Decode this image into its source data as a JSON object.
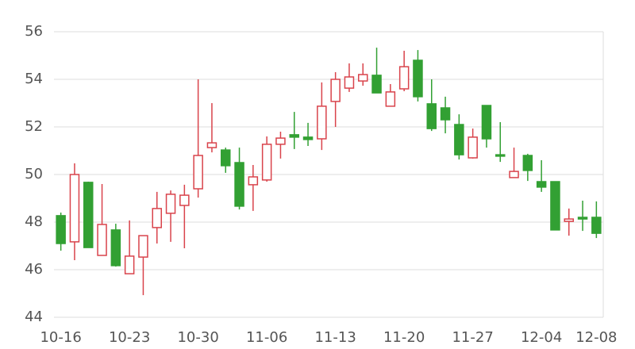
{
  "chart_data": {
    "type": "candlestick",
    "categories": [
      "10-16",
      null,
      null,
      null,
      null,
      "10-23",
      null,
      null,
      null,
      null,
      "10-30",
      null,
      null,
      null,
      null,
      "11-06",
      null,
      null,
      null,
      null,
      "11-13",
      null,
      null,
      null,
      null,
      "11-20",
      null,
      null,
      null,
      null,
      "11-27",
      null,
      null,
      null,
      null,
      "12-04",
      null,
      null,
      null,
      "12-08"
    ],
    "open": [
      48.27,
      47.17,
      49.67,
      46.6,
      47.67,
      45.83,
      46.53,
      47.77,
      48.37,
      48.7,
      49.4,
      51.13,
      51.03,
      50.5,
      49.57,
      49.77,
      51.27,
      51.67,
      51.57,
      51.5,
      53.07,
      53.63,
      53.93,
      54.17,
      52.87,
      53.6,
      54.8,
      52.97,
      52.8,
      52.1,
      50.7,
      52.9,
      50.83,
      49.87,
      50.8,
      49.7,
      49.7,
      48.03,
      48.2,
      48.2
    ],
    "close": [
      47.1,
      50.0,
      46.93,
      47.9,
      46.17,
      46.57,
      47.43,
      48.57,
      49.17,
      49.13,
      50.8,
      51.33,
      50.37,
      48.67,
      49.9,
      51.27,
      51.53,
      51.57,
      51.47,
      52.87,
      54.0,
      54.1,
      54.2,
      53.43,
      53.47,
      54.53,
      53.27,
      51.93,
      52.3,
      50.83,
      51.57,
      51.5,
      50.77,
      50.13,
      50.17,
      49.47,
      47.67,
      48.13,
      48.13,
      47.53
    ],
    "high": [
      48.4,
      50.47,
      49.7,
      49.6,
      47.93,
      48.07,
      47.43,
      49.27,
      49.33,
      49.57,
      54.0,
      53.0,
      51.13,
      51.13,
      50.4,
      51.6,
      51.8,
      52.63,
      52.17,
      53.87,
      54.3,
      54.67,
      54.67,
      55.33,
      53.8,
      55.2,
      55.23,
      54.0,
      53.27,
      52.53,
      51.93,
      52.9,
      52.2,
      51.13,
      50.87,
      50.6,
      49.7,
      48.57,
      48.9,
      48.87
    ],
    "low": [
      46.8,
      46.4,
      46.93,
      46.6,
      46.13,
      45.83,
      44.93,
      47.1,
      47.17,
      46.9,
      49.03,
      50.93,
      50.07,
      48.53,
      48.47,
      49.7,
      50.67,
      51.07,
      51.2,
      51.03,
      52.0,
      53.47,
      53.73,
      53.43,
      52.87,
      53.5,
      53.07,
      51.83,
      51.73,
      50.63,
      50.67,
      51.13,
      50.53,
      49.93,
      49.73,
      49.27,
      47.67,
      47.43,
      47.63,
      47.33
    ],
    "up_color": "#d9434b",
    "down_color": "#32a033",
    "ylim": [
      44,
      56
    ],
    "yticks": [
      44,
      46,
      48,
      50,
      52,
      54,
      56
    ],
    "grid": true
  }
}
